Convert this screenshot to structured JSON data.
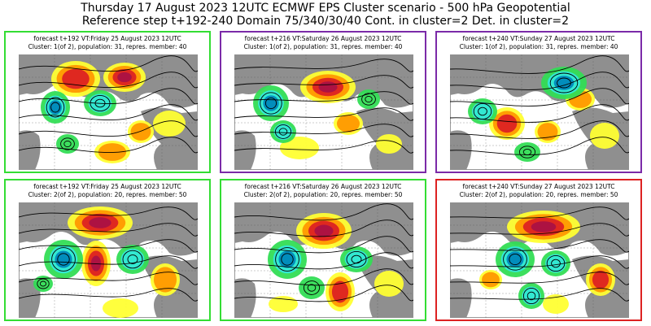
{
  "header": {
    "line1": "Thursday 17 August 2023 12UTC ECMWF EPS Cluster scenario - 500 hPa Geopotential",
    "line2": "Reference step t+192-240 Domain 75/340/30/40 Cont. in cluster=2 Det. in cluster=2"
  },
  "colors": {
    "green_frame": "#33dd33",
    "purple_frame": "#7b2aa8",
    "red_frame": "#dd2222",
    "land": "#8f8f8f",
    "sea": "#ffffff",
    "positive_anomaly": [
      "#ffff33",
      "#ff9900",
      "#dd2222",
      "#aa1144"
    ],
    "negative_anomaly": [
      "#33dd55",
      "#33e8d8",
      "#0088bb"
    ]
  },
  "panels": [
    {
      "label1": "forecast t+192 VT:Friday 25 August 2023 12UTC",
      "label2": "Cluster: 1(of 2), population: 31, repres. member: 40",
      "frame": "green"
    },
    {
      "label1": "forecast t+216 VT:Saturday 26 August 2023 12UTC",
      "label2": "Cluster: 1(of 2), population: 31, repres. member: 40",
      "frame": "purple"
    },
    {
      "label1": "forecast t+240 VT:Sunday 27 August 2023 12UTC",
      "label2": "Cluster: 1(of 2), population: 31, repres. member: 40",
      "frame": "purple"
    },
    {
      "label1": "forecast t+192 VT:Friday 25 August 2023 12UTC",
      "label2": "Cluster: 2(of 2), population: 20, repres. member: 50",
      "frame": "green"
    },
    {
      "label1": "forecast t+216 VT:Saturday 26 August 2023 12UTC",
      "label2": "Cluster: 2(of 2), population: 20, repres. member: 50",
      "frame": "green"
    },
    {
      "label1": "forecast t+240 VT:Sunday 27 August 2023 12UTC",
      "label2": "Cluster: 2(of 2), population: 20, repres. member: 50",
      "frame": "red"
    }
  ]
}
